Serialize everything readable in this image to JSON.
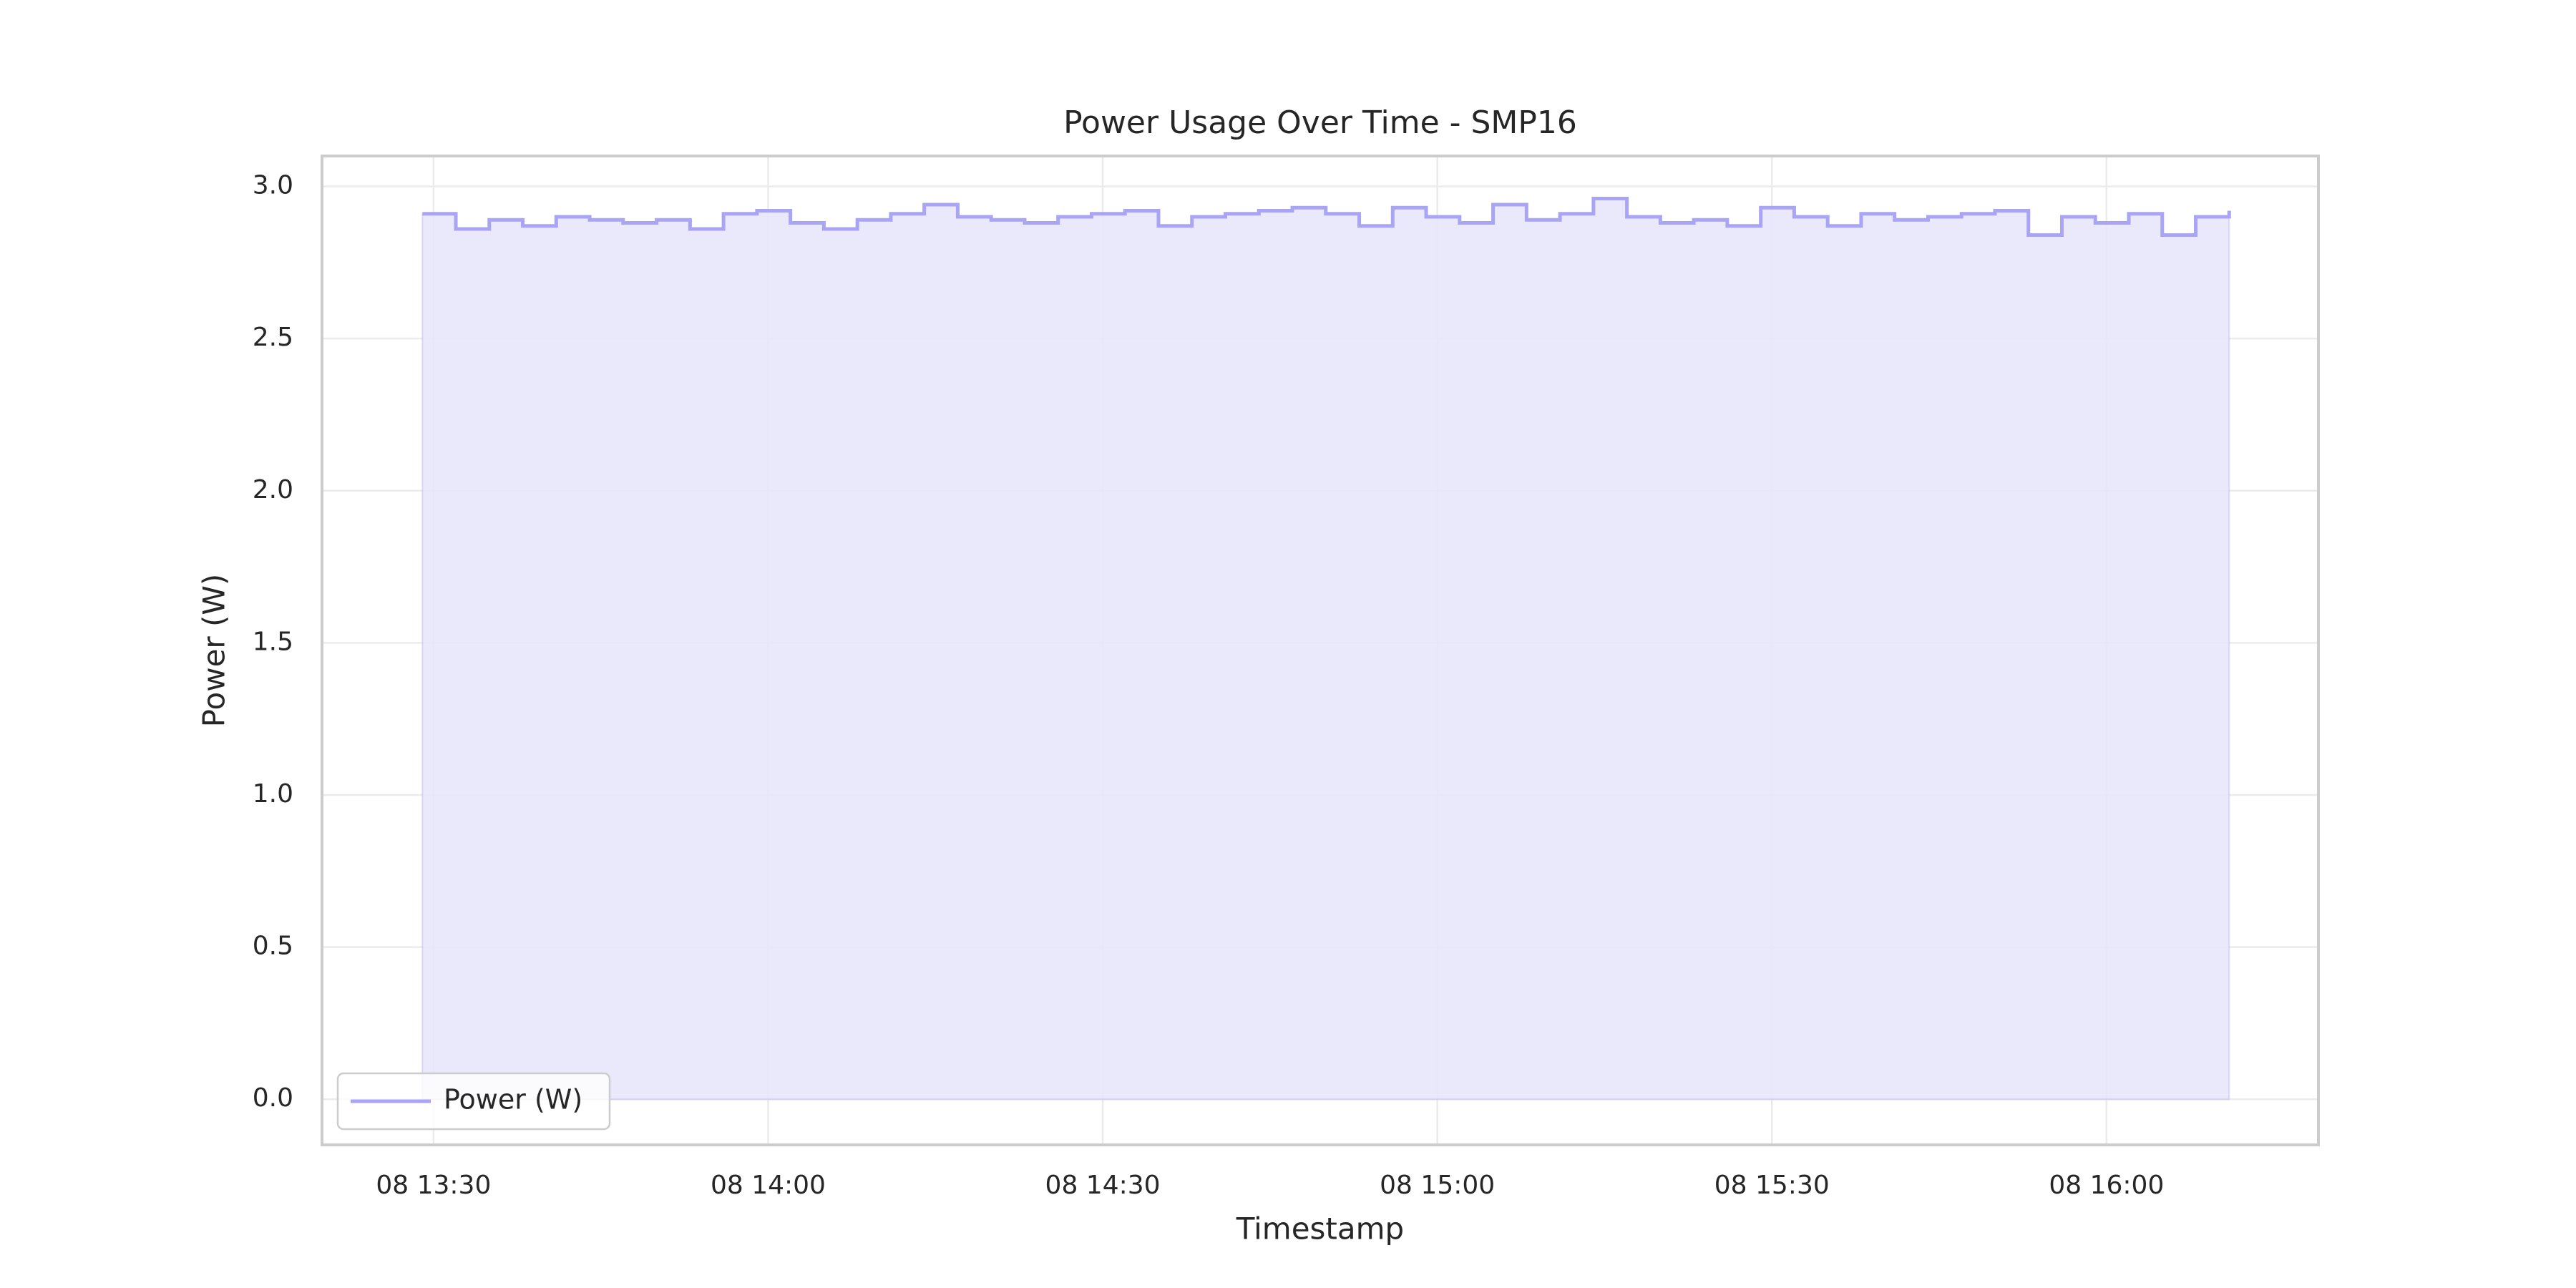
{
  "chart_data": {
    "type": "step-area",
    "title": "Power Usage Over Time - SMP16",
    "x_label": "Timestamp",
    "y_label": "Power (W)",
    "x": [
      "08 13:29",
      "08 13:32",
      "08 13:35",
      "08 13:38",
      "08 13:41",
      "08 13:44",
      "08 13:47",
      "08 13:50",
      "08 13:53",
      "08 13:56",
      "08 13:59",
      "08 14:02",
      "08 14:05",
      "08 14:08",
      "08 14:11",
      "08 14:14",
      "08 14:17",
      "08 14:20",
      "08 14:23",
      "08 14:26",
      "08 14:29",
      "08 14:32",
      "08 14:35",
      "08 14:38",
      "08 14:41",
      "08 14:44",
      "08 14:47",
      "08 14:50",
      "08 14:53",
      "08 14:56",
      "08 14:59",
      "08 15:02",
      "08 15:05",
      "08 15:08",
      "08 15:11",
      "08 15:14",
      "08 15:17",
      "08 15:20",
      "08 15:23",
      "08 15:26",
      "08 15:29",
      "08 15:32",
      "08 15:35",
      "08 15:38",
      "08 15:41",
      "08 15:44",
      "08 15:47",
      "08 15:50",
      "08 15:53",
      "08 15:56",
      "08 15:59",
      "08 16:02",
      "08 16:05",
      "08 16:08",
      "08 16:11"
    ],
    "series": [
      {
        "name": "Power (W)",
        "color": "#a9a4f3",
        "fill": "#e8e6fb",
        "values": [
          2.91,
          2.86,
          2.89,
          2.87,
          2.9,
          2.89,
          2.88,
          2.89,
          2.86,
          2.91,
          2.92,
          2.88,
          2.86,
          2.89,
          2.91,
          2.94,
          2.9,
          2.89,
          2.88,
          2.9,
          2.91,
          2.92,
          2.87,
          2.9,
          2.91,
          2.92,
          2.93,
          2.91,
          2.87,
          2.93,
          2.9,
          2.88,
          2.94,
          2.89,
          2.91,
          2.96,
          2.9,
          2.88,
          2.89,
          2.87,
          2.93,
          2.9,
          2.87,
          2.91,
          2.89,
          2.9,
          2.91,
          2.92,
          2.84,
          2.9,
          2.88,
          2.91,
          2.84,
          2.9,
          2.92
        ]
      }
    ],
    "xlim": [
      "08 13:20",
      "08 16:19"
    ],
    "xticks": [
      "08 13:30",
      "08 14:00",
      "08 14:30",
      "08 15:00",
      "08 15:30",
      "08 16:00"
    ],
    "ylim": [
      -0.15,
      3.1
    ],
    "yticks": [
      {
        "value": 0,
        "label": "0.0"
      },
      0.5,
      {
        "value": 1,
        "label": "1.0"
      },
      1.5,
      {
        "value": 2,
        "label": "2.0"
      },
      2.5,
      {
        "value": 3,
        "label": "3.0"
      }
    ],
    "grid": true,
    "legend": "lower left"
  }
}
